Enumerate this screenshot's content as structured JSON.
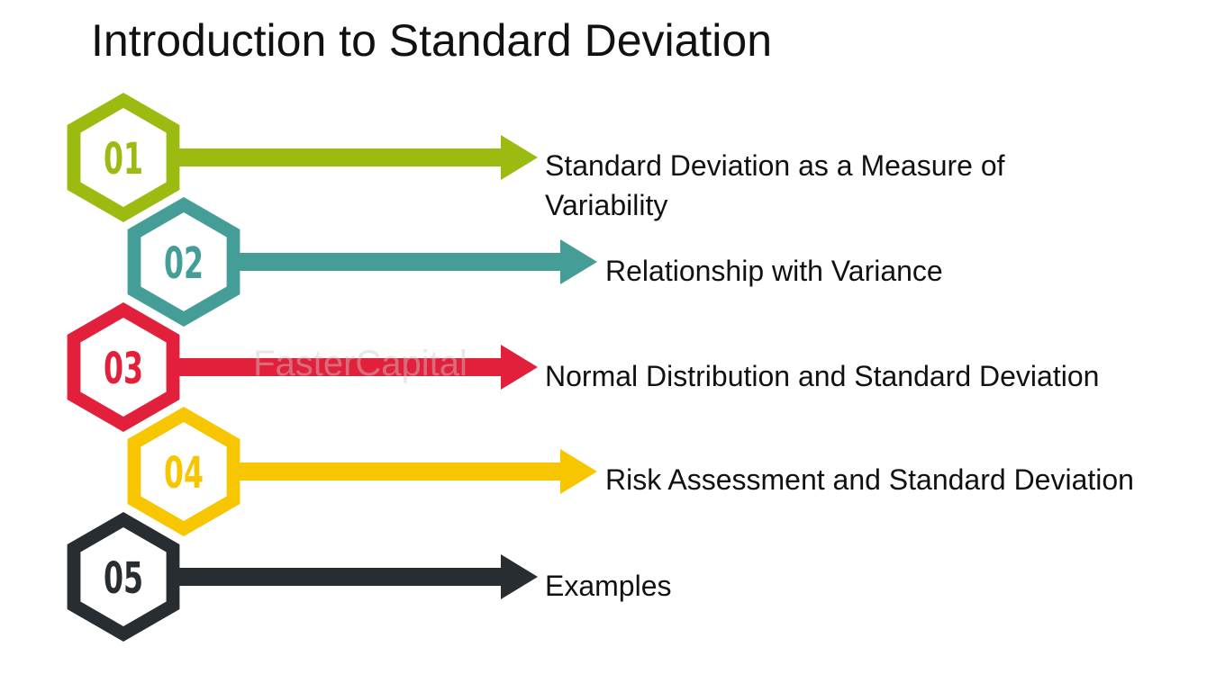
{
  "title": "Introduction to Standard Deviation",
  "watermark": "FasterCapital",
  "items": [
    {
      "number": "01",
      "label_line1": "Standard Deviation as a Measure of",
      "label_line2": "Variability",
      "color": "#9cbb11"
    },
    {
      "number": "02",
      "label_line1": "Relationship with Variance",
      "label_line2": "",
      "color": "#459d98"
    },
    {
      "number": "03",
      "label_line1": "Normal Distribution and Standard Deviation",
      "label_line2": "",
      "color": "#e2203b"
    },
    {
      "number": "04",
      "label_line1": "Risk Assessment and Standard Deviation",
      "label_line2": "",
      "color": "#f8c600"
    },
    {
      "number": "05",
      "label_line1": "Examples",
      "label_line2": "",
      "color": "#282d31"
    }
  ]
}
